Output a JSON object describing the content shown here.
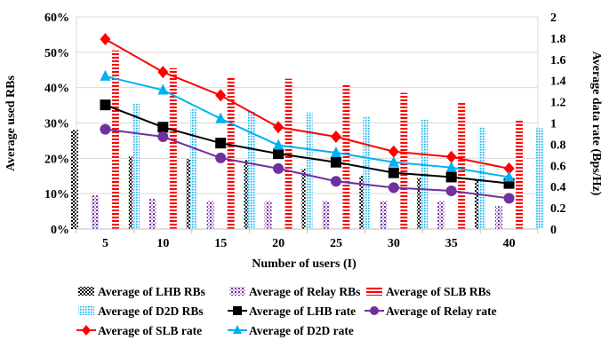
{
  "chart_data": {
    "type": "bar",
    "categories": [
      "5",
      "10",
      "15",
      "20",
      "25",
      "30",
      "35",
      "40"
    ],
    "xlabel": "Number of users (I)",
    "ylabel": "Average used RBs",
    "y2label": "Average data rate (Bps/Hz)",
    "ylim": [
      0,
      60
    ],
    "y2lim": [
      0,
      2
    ],
    "y_ticks": [
      "0%",
      "10%",
      "20%",
      "30%",
      "40%",
      "50%",
      "60%"
    ],
    "y2_ticks": [
      "0",
      "0.2",
      "0.4",
      "0.6",
      "0.8",
      "1",
      "1.2",
      "1.4",
      "1.6",
      "1.8",
      "2"
    ],
    "grid": true,
    "legend_position": "bottom",
    "bar_series": [
      {
        "name": "Average of LHB RBs",
        "unit": "%",
        "color": "#000000",
        "pattern": "checker",
        "values": [
          28,
          20.5,
          19.8,
          19.5,
          17,
          15,
          14.5,
          14
        ]
      },
      {
        "name": "Average of Relay RBs",
        "unit": "%",
        "color": "#7030a0",
        "pattern": "diagonal",
        "values": [
          9.5,
          8.5,
          8,
          8,
          8,
          8,
          8,
          6.5
        ]
      },
      {
        "name": "Average of SLB RBs",
        "unit": "%",
        "color": "#ff0000",
        "pattern": "hstripe",
        "values": [
          50.5,
          45.5,
          43,
          42.5,
          41,
          38.5,
          36,
          31
        ]
      },
      {
        "name": "Average of D2D RBs",
        "unit": "%",
        "color": "#00b0f0",
        "pattern": "dots",
        "values": [
          35.5,
          34,
          33.5,
          33,
          32,
          31,
          29,
          28.5
        ]
      }
    ],
    "line_series": [
      {
        "name": "Average of LHB rate",
        "color": "#000000",
        "marker": "square",
        "values": [
          1.17,
          0.96,
          0.81,
          0.71,
          0.63,
          0.53,
          0.49,
          0.43
        ]
      },
      {
        "name": "Average of Relay rate",
        "color": "#7030a0",
        "marker": "circle",
        "values": [
          0.94,
          0.87,
          0.67,
          0.57,
          0.45,
          0.39,
          0.36,
          0.29
        ]
      },
      {
        "name": "Average of SLB rate",
        "color": "#ff0000",
        "marker": "diamond",
        "values": [
          1.79,
          1.48,
          1.26,
          0.96,
          0.87,
          0.73,
          0.68,
          0.57
        ]
      },
      {
        "name": "Average of D2D rate",
        "color": "#00b0f0",
        "marker": "triangle",
        "values": [
          1.44,
          1.31,
          1.04,
          0.79,
          0.72,
          0.63,
          0.58,
          0.49
        ]
      }
    ]
  }
}
